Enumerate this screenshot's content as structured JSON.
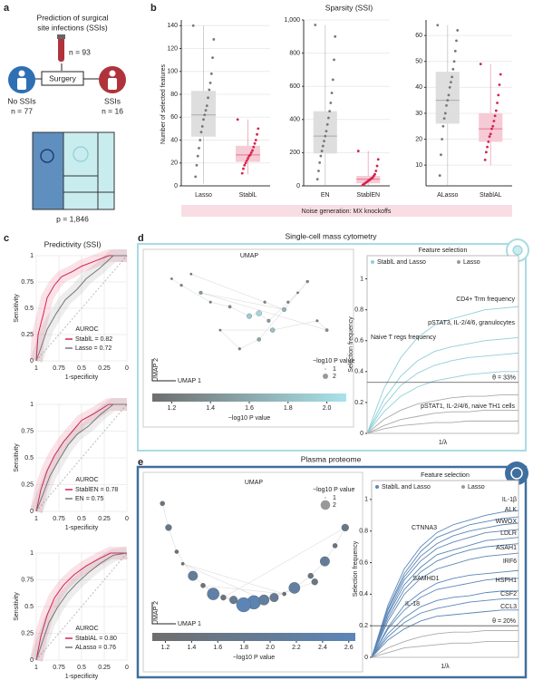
{
  "panel_labels": [
    "a",
    "b",
    "c",
    "d",
    "e"
  ],
  "panel_a": {
    "title_lines": [
      "Prediction of surgical",
      "site infections (SSIs)"
    ],
    "n_total": "n = 93",
    "step": "Surgery",
    "groups": [
      {
        "label": "No SSIs",
        "n": "n = 77"
      },
      {
        "label": "SSIs",
        "n": "n = 16"
      }
    ],
    "features": "p = 1,846"
  },
  "panel_b": {
    "title": "Sparsity (SSI)",
    "y_label": "Number of selected features",
    "banner": "Noise generation: MX knockoffs"
  },
  "panel_c": {
    "title": "Predictivity (SSI)"
  },
  "panel_d": {
    "title": "Single-cell mass cytometry"
  },
  "panel_e": {
    "title": "Plasma proteome"
  },
  "chart_data": [
    {
      "type": "box",
      "categories": [
        "Lasso",
        "StablL"
      ],
      "ylim": [
        0,
        145
      ],
      "yticks": [
        0,
        20,
        40,
        60,
        80,
        100,
        120,
        140
      ],
      "boxes": [
        {
          "min": 2,
          "q1": 43,
          "median": 62,
          "q3": 83,
          "max": 140,
          "color": "#777777",
          "fill": "#dedede",
          "points": [
            140,
            128,
            112,
            98,
            90,
            84,
            77,
            70,
            66,
            62,
            58,
            52,
            47,
            40,
            33,
            26,
            18,
            8
          ]
        },
        {
          "min": 10,
          "q1": 21,
          "median": 27,
          "q3": 35,
          "max": 58,
          "color": "#d6214e",
          "fill": "#f6cbd6",
          "points": [
            58,
            50,
            45,
            40,
            37,
            34,
            31,
            29,
            27,
            26,
            24,
            22,
            20,
            18,
            15,
            11
          ]
        }
      ]
    },
    {
      "type": "box",
      "categories": [
        "EN",
        "StablEN"
      ],
      "ylim": [
        0,
        1000
      ],
      "yticks": [
        0,
        200,
        400,
        600,
        800,
        {
          "value": 1000,
          "label": "1,000"
        }
      ],
      "boxes": [
        {
          "min": 0,
          "q1": 195,
          "median": 300,
          "q3": 450,
          "max": 970,
          "color": "#777777",
          "fill": "#dedede",
          "points": [
            970,
            900,
            760,
            640,
            560,
            500,
            450,
            410,
            370,
            330,
            300,
            270,
            240,
            210,
            180,
            140,
            90,
            40
          ]
        },
        {
          "min": 0,
          "q1": 15,
          "median": 40,
          "q3": 60,
          "max": 210,
          "color": "#d6214e",
          "fill": "#f6cbd6",
          "points": [
            210,
            160,
            120,
            90,
            70,
            60,
            50,
            45,
            40,
            35,
            30,
            25,
            20,
            15,
            10,
            5
          ]
        }
      ]
    },
    {
      "type": "box",
      "categories": [
        "ALasso",
        "StablAL"
      ],
      "ylim": [
        2,
        66
      ],
      "yticks": [
        10,
        20,
        30,
        40,
        50,
        60
      ],
      "boxes": [
        {
          "min": 2,
          "q1": 26,
          "median": 35,
          "q3": 46,
          "max": 64,
          "color": "#777777",
          "fill": "#dedede",
          "points": [
            64,
            62,
            58,
            54,
            50,
            47,
            44,
            42,
            40,
            37,
            35,
            33,
            30,
            28,
            25,
            20,
            14,
            6
          ]
        },
        {
          "min": 10,
          "q1": 19,
          "median": 24,
          "q3": 30,
          "max": 49,
          "color": "#d6214e",
          "fill": "#f6cbd6",
          "points": [
            49,
            45,
            41,
            37,
            34,
            31,
            29,
            27,
            25,
            24,
            22,
            21,
            19,
            17,
            15,
            12
          ]
        }
      ]
    },
    {
      "type": "roc",
      "x_label": "1-specificity",
      "y_label": "Sensitivity",
      "legend_title": "AUROC",
      "xlim": [
        1,
        0
      ],
      "ylim": [
        0,
        1
      ],
      "xticks": [
        1,
        0.75,
        0.5,
        0.25,
        0
      ],
      "yticks": [
        0,
        0.25,
        0.5,
        0.75,
        1
      ],
      "series": [
        {
          "name": "StablL",
          "auroc_label": "= 0.82",
          "color": "#d6214e",
          "x": [
            1,
            0.98,
            0.92,
            0.88,
            0.8,
            0.72,
            0.6,
            0.5,
            0.35,
            0.2,
            0
          ],
          "values": [
            0,
            0.25,
            0.45,
            0.6,
            0.72,
            0.8,
            0.85,
            0.9,
            0.95,
            1,
            1
          ]
        },
        {
          "name": "Lasso",
          "auroc_label": "= 0.72",
          "color": "#777777",
          "x": [
            1,
            0.95,
            0.88,
            0.78,
            0.68,
            0.55,
            0.45,
            0.3,
            0.15,
            0
          ],
          "values": [
            0,
            0.12,
            0.3,
            0.45,
            0.58,
            0.68,
            0.78,
            0.88,
            1,
            1
          ]
        }
      ]
    },
    {
      "type": "roc",
      "x_label": "1-specificity",
      "y_label": "Sensitivity",
      "legend_title": "AUROC",
      "xlim": [
        1,
        0
      ],
      "ylim": [
        0,
        1
      ],
      "xticks": [
        1,
        0.75,
        0.5,
        0.25,
        0
      ],
      "yticks": [
        0,
        0.25,
        0.5,
        0.75,
        1
      ],
      "series": [
        {
          "name": "StablEN",
          "auroc_label": "= 0.78",
          "color": "#d6214e",
          "x": [
            1,
            0.95,
            0.88,
            0.8,
            0.7,
            0.6,
            0.5,
            0.35,
            0.2,
            0
          ],
          "values": [
            0,
            0.2,
            0.38,
            0.52,
            0.65,
            0.75,
            0.85,
            0.92,
            1,
            1
          ]
        },
        {
          "name": "EN",
          "auroc_label": "= 0.75",
          "color": "#777777",
          "x": [
            1,
            0.93,
            0.85,
            0.75,
            0.65,
            0.55,
            0.42,
            0.3,
            0.15,
            0
          ],
          "values": [
            0,
            0.15,
            0.33,
            0.48,
            0.62,
            0.72,
            0.8,
            0.9,
            1,
            1
          ]
        }
      ]
    },
    {
      "type": "roc",
      "x_label": "1-specificity",
      "y_label": "Sensitivity",
      "legend_title": "AUROC",
      "xlim": [
        1,
        0
      ],
      "ylim": [
        0,
        1
      ],
      "xticks": [
        1,
        0.75,
        0.5,
        0.25,
        0
      ],
      "yticks": [
        0,
        0.25,
        0.5,
        0.75,
        1
      ],
      "series": [
        {
          "name": "StablAL",
          "auroc_label": "= 0.80",
          "color": "#d6214e",
          "x": [
            1,
            0.95,
            0.88,
            0.8,
            0.7,
            0.58,
            0.45,
            0.3,
            0.18,
            0
          ],
          "values": [
            0,
            0.22,
            0.42,
            0.58,
            0.7,
            0.8,
            0.88,
            0.95,
            1,
            1
          ]
        },
        {
          "name": "ALasso",
          "auroc_label": "= 0.76",
          "color": "#777777",
          "x": [
            1,
            0.94,
            0.86,
            0.76,
            0.66,
            0.55,
            0.42,
            0.3,
            0.15,
            0
          ],
          "values": [
            0,
            0.15,
            0.35,
            0.5,
            0.62,
            0.72,
            0.82,
            0.9,
            0.98,
            1
          ]
        }
      ]
    },
    {
      "type": "line",
      "x_label": "1/λ",
      "y_label": "Selection frequency",
      "legend_title": "Feature selection",
      "legend": [
        {
          "label": "StablL and Lasso",
          "color": "#8fcfd9"
        },
        {
          "label": "Lasso",
          "color": "#999999"
        }
      ],
      "threshold": {
        "value": 0.33,
        "label": "θ = 33%"
      },
      "threshold_color": "#8fcfd9",
      "x": [
        1,
        2,
        3,
        4,
        5,
        6,
        7,
        8,
        9,
        10
      ],
      "xlim": [
        1,
        10
      ],
      "ylim": [
        0,
        1.15
      ],
      "yticks": [
        0,
        0.2,
        0.4,
        0.6,
        0.8,
        1
      ],
      "series": [
        {
          "name": "CD4+ Trm frequency",
          "color": "#8fcfd9",
          "values": [
            0,
            0.29,
            0.49,
            0.62,
            0.7,
            0.74,
            0.77,
            0.8,
            0.81,
            0.82
          ]
        },
        {
          "name": "pSTAT3, IL-2/4/6, granulocytes",
          "color": "#8fcfd9",
          "values": [
            0,
            0.22,
            0.37,
            0.47,
            0.53,
            0.56,
            0.58,
            0.6,
            0.61,
            0.62
          ]
        },
        {
          "name": "Naive T regs frequency",
          "color": "#8fcfd9",
          "values": [
            0,
            0.18,
            0.31,
            0.39,
            0.44,
            0.47,
            0.49,
            0.5,
            0.51,
            0.52
          ]
        },
        {
          "name": "pSTAT1, IL-2/4/6, naive TH1 cells",
          "color": "#8fcfd9",
          "values": [
            0,
            0.14,
            0.24,
            0.3,
            0.34,
            0.36,
            0.38,
            0.39,
            0.4,
            0.4
          ]
        },
        {
          "color": "#aaaaaa",
          "values": [
            0,
            0.09,
            0.15,
            0.19,
            0.21,
            0.23,
            0.24,
            0.24,
            0.25,
            0.25
          ]
        },
        {
          "color": "#aaaaaa",
          "values": [
            0,
            0.05,
            0.09,
            0.11,
            0.13,
            0.14,
            0.14,
            0.15,
            0.15,
            0.15
          ]
        },
        {
          "color": "#aaaaaa",
          "values": [
            0,
            0.03,
            0.05,
            0.06,
            0.07,
            0.07,
            0.08,
            0.08,
            0.08,
            0.08
          ]
        }
      ]
    },
    {
      "type": "line",
      "x_label": "1/λ",
      "y_label": "Selection frequency",
      "legend_title": "Feature selection",
      "legend": [
        {
          "label": "StablL and Lasso",
          "color": "#5b86b7"
        },
        {
          "label": "Lasso",
          "color": "#999999"
        }
      ],
      "threshold": {
        "value": 0.2,
        "label": "θ = 20%"
      },
      "threshold_color": "#5b86b7",
      "x": [
        1,
        2,
        3,
        4,
        5,
        6,
        7,
        8,
        9,
        10
      ],
      "xlim": [
        1,
        10
      ],
      "ylim": [
        0,
        1.12
      ],
      "yticks": [
        0,
        0.2,
        0.4,
        0.6,
        0.8,
        1
      ],
      "series": [
        {
          "name": "IL-1β",
          "color": "#5b86b7",
          "values": [
            0,
            0.33,
            0.56,
            0.7,
            0.79,
            0.84,
            0.87,
            0.9,
            0.92,
            0.93
          ]
        },
        {
          "name": "ALK",
          "color": "#5b86b7",
          "values": [
            0,
            0.31,
            0.53,
            0.67,
            0.76,
            0.8,
            0.84,
            0.86,
            0.88,
            0.89
          ]
        },
        {
          "name": "WWOX",
          "color": "#5b86b7",
          "values": [
            0,
            0.3,
            0.51,
            0.64,
            0.72,
            0.77,
            0.8,
            0.82,
            0.84,
            0.85
          ]
        },
        {
          "name": "LDLR",
          "color": "#5b86b7",
          "values": [
            0,
            0.28,
            0.49,
            0.61,
            0.69,
            0.73,
            0.76,
            0.79,
            0.8,
            0.81
          ]
        },
        {
          "name": "CTNNA3",
          "color": "#5b86b7",
          "values": [
            0,
            0.27,
            0.46,
            0.57,
            0.65,
            0.68,
            0.71,
            0.74,
            0.75,
            0.76
          ]
        },
        {
          "name": "ASAH1",
          "color": "#5b86b7",
          "values": [
            0,
            0.25,
            0.43,
            0.54,
            0.61,
            0.65,
            0.68,
            0.7,
            0.71,
            0.72
          ]
        },
        {
          "name": "IRF6",
          "color": "#5b86b7",
          "values": [
            0,
            0.23,
            0.4,
            0.5,
            0.56,
            0.59,
            0.62,
            0.64,
            0.65,
            0.66
          ]
        },
        {
          "name": "SAMHD1",
          "color": "#5b86b7",
          "values": [
            0,
            0.19,
            0.33,
            0.41,
            0.47,
            0.5,
            0.52,
            0.53,
            0.54,
            0.55
          ]
        },
        {
          "name": "HSPH1",
          "color": "#5b86b7",
          "values": [
            0,
            0.18,
            0.3,
            0.38,
            0.43,
            0.45,
            0.47,
            0.49,
            0.5,
            0.5
          ]
        },
        {
          "name": "CSF2",
          "color": "#5b86b7",
          "values": [
            0,
            0.15,
            0.25,
            0.32,
            0.36,
            0.38,
            0.39,
            0.41,
            0.42,
            0.42
          ]
        },
        {
          "name": "CCL3",
          "color": "#5b86b7",
          "values": [
            0,
            0.13,
            0.22,
            0.28,
            0.31,
            0.33,
            0.35,
            0.36,
            0.37,
            0.37
          ]
        },
        {
          "name": "IL-18",
          "color": "#5b86b7",
          "values": [
            0,
            0.11,
            0.18,
            0.23,
            0.26,
            0.27,
            0.28,
            0.29,
            0.3,
            0.3
          ]
        },
        {
          "color": "#aaaaaa",
          "values": [
            0,
            0.06,
            0.1,
            0.13,
            0.15,
            0.16,
            0.16,
            0.17,
            0.17,
            0.17
          ]
        },
        {
          "color": "#aaaaaa",
          "values": [
            0,
            0.03,
            0.06,
            0.07,
            0.08,
            0.09,
            0.09,
            0.1,
            0.1,
            0.1
          ]
        }
      ]
    },
    {
      "type": "scatter",
      "title": "UMAP",
      "x_label": "UMAP 1",
      "y_label": "UMAP 2",
      "xlim": [
        0,
        1
      ],
      "ylim": [
        0,
        1
      ],
      "x": [
        0.1,
        0.15,
        0.3,
        0.4,
        0.5,
        0.55,
        0.6,
        0.7,
        0.75,
        0.8,
        0.55,
        0.45,
        0.35,
        0.62,
        0.85,
        0.9,
        0.25,
        0.68,
        0.58,
        0.2
      ],
      "y": [
        0.85,
        0.78,
        0.6,
        0.55,
        0.45,
        0.48,
        0.4,
        0.6,
        0.7,
        0.82,
        0.2,
        0.1,
        0.3,
        0.3,
        0.4,
        0.3,
        0.7,
        0.52,
        0.6,
        0.9
      ],
      "sizes": [
        1.2,
        1.3,
        1.25,
        1.4,
        1.9,
        2.0,
        1.5,
        1.3,
        1.2,
        1.35,
        1.6,
        1.3,
        1.2,
        1.8,
        1.25,
        1.4,
        1.5,
        1.7,
        1.3,
        1.2
      ],
      "colorbar": {
        "title": "−log10 P value",
        "lim": [
          1.1,
          2.1
        ],
        "colors": [
          "#6e6e6e",
          "#a8e3ea"
        ],
        "ticks": [
          1.2,
          1.4,
          1.6,
          1.8,
          {
            "value": 2,
            "label": "2.0"
          }
        ]
      },
      "size_legend": {
        "title": "−log10 P value",
        "values": [
          1,
          2
        ]
      }
    },
    {
      "type": "scatter",
      "title": "UMAP",
      "x_label": "UMAP 1",
      "y_label": "UMAP 2",
      "xlim": [
        0,
        1
      ],
      "ylim": [
        0,
        1
      ],
      "x": [
        0.05,
        0.08,
        0.12,
        0.2,
        0.3,
        0.4,
        0.5,
        0.6,
        0.7,
        0.78,
        0.85,
        0.9,
        0.95,
        0.35,
        0.45,
        0.25,
        0.65,
        0.15,
        0.55,
        0.8
      ],
      "y": [
        0.9,
        0.7,
        0.5,
        0.3,
        0.15,
        0.1,
        0.08,
        0.12,
        0.2,
        0.3,
        0.42,
        0.55,
        0.7,
        0.12,
        0.06,
        0.22,
        0.15,
        0.4,
        0.1,
        0.25
      ],
      "sizes": [
        1.4,
        1.6,
        1.3,
        2.0,
        2.3,
        1.8,
        2.5,
        1.9,
        2.2,
        1.5,
        2.0,
        1.4,
        1.7,
        1.5,
        2.6,
        1.4,
        1.3,
        1.2,
        2.1,
        1.6
      ],
      "colorbar": {
        "title": "−log10 P value",
        "lim": [
          1.1,
          2.65
        ],
        "colors": [
          "#6e6e6e",
          "#5b86b7"
        ],
        "ticks": [
          1.2,
          1.4,
          1.6,
          1.8,
          {
            "value": 2,
            "label": "2.0"
          },
          2.2,
          2.4,
          2.6
        ]
      },
      "size_legend": {
        "title": "−log10 P value",
        "values": [
          1,
          2
        ]
      }
    }
  ]
}
